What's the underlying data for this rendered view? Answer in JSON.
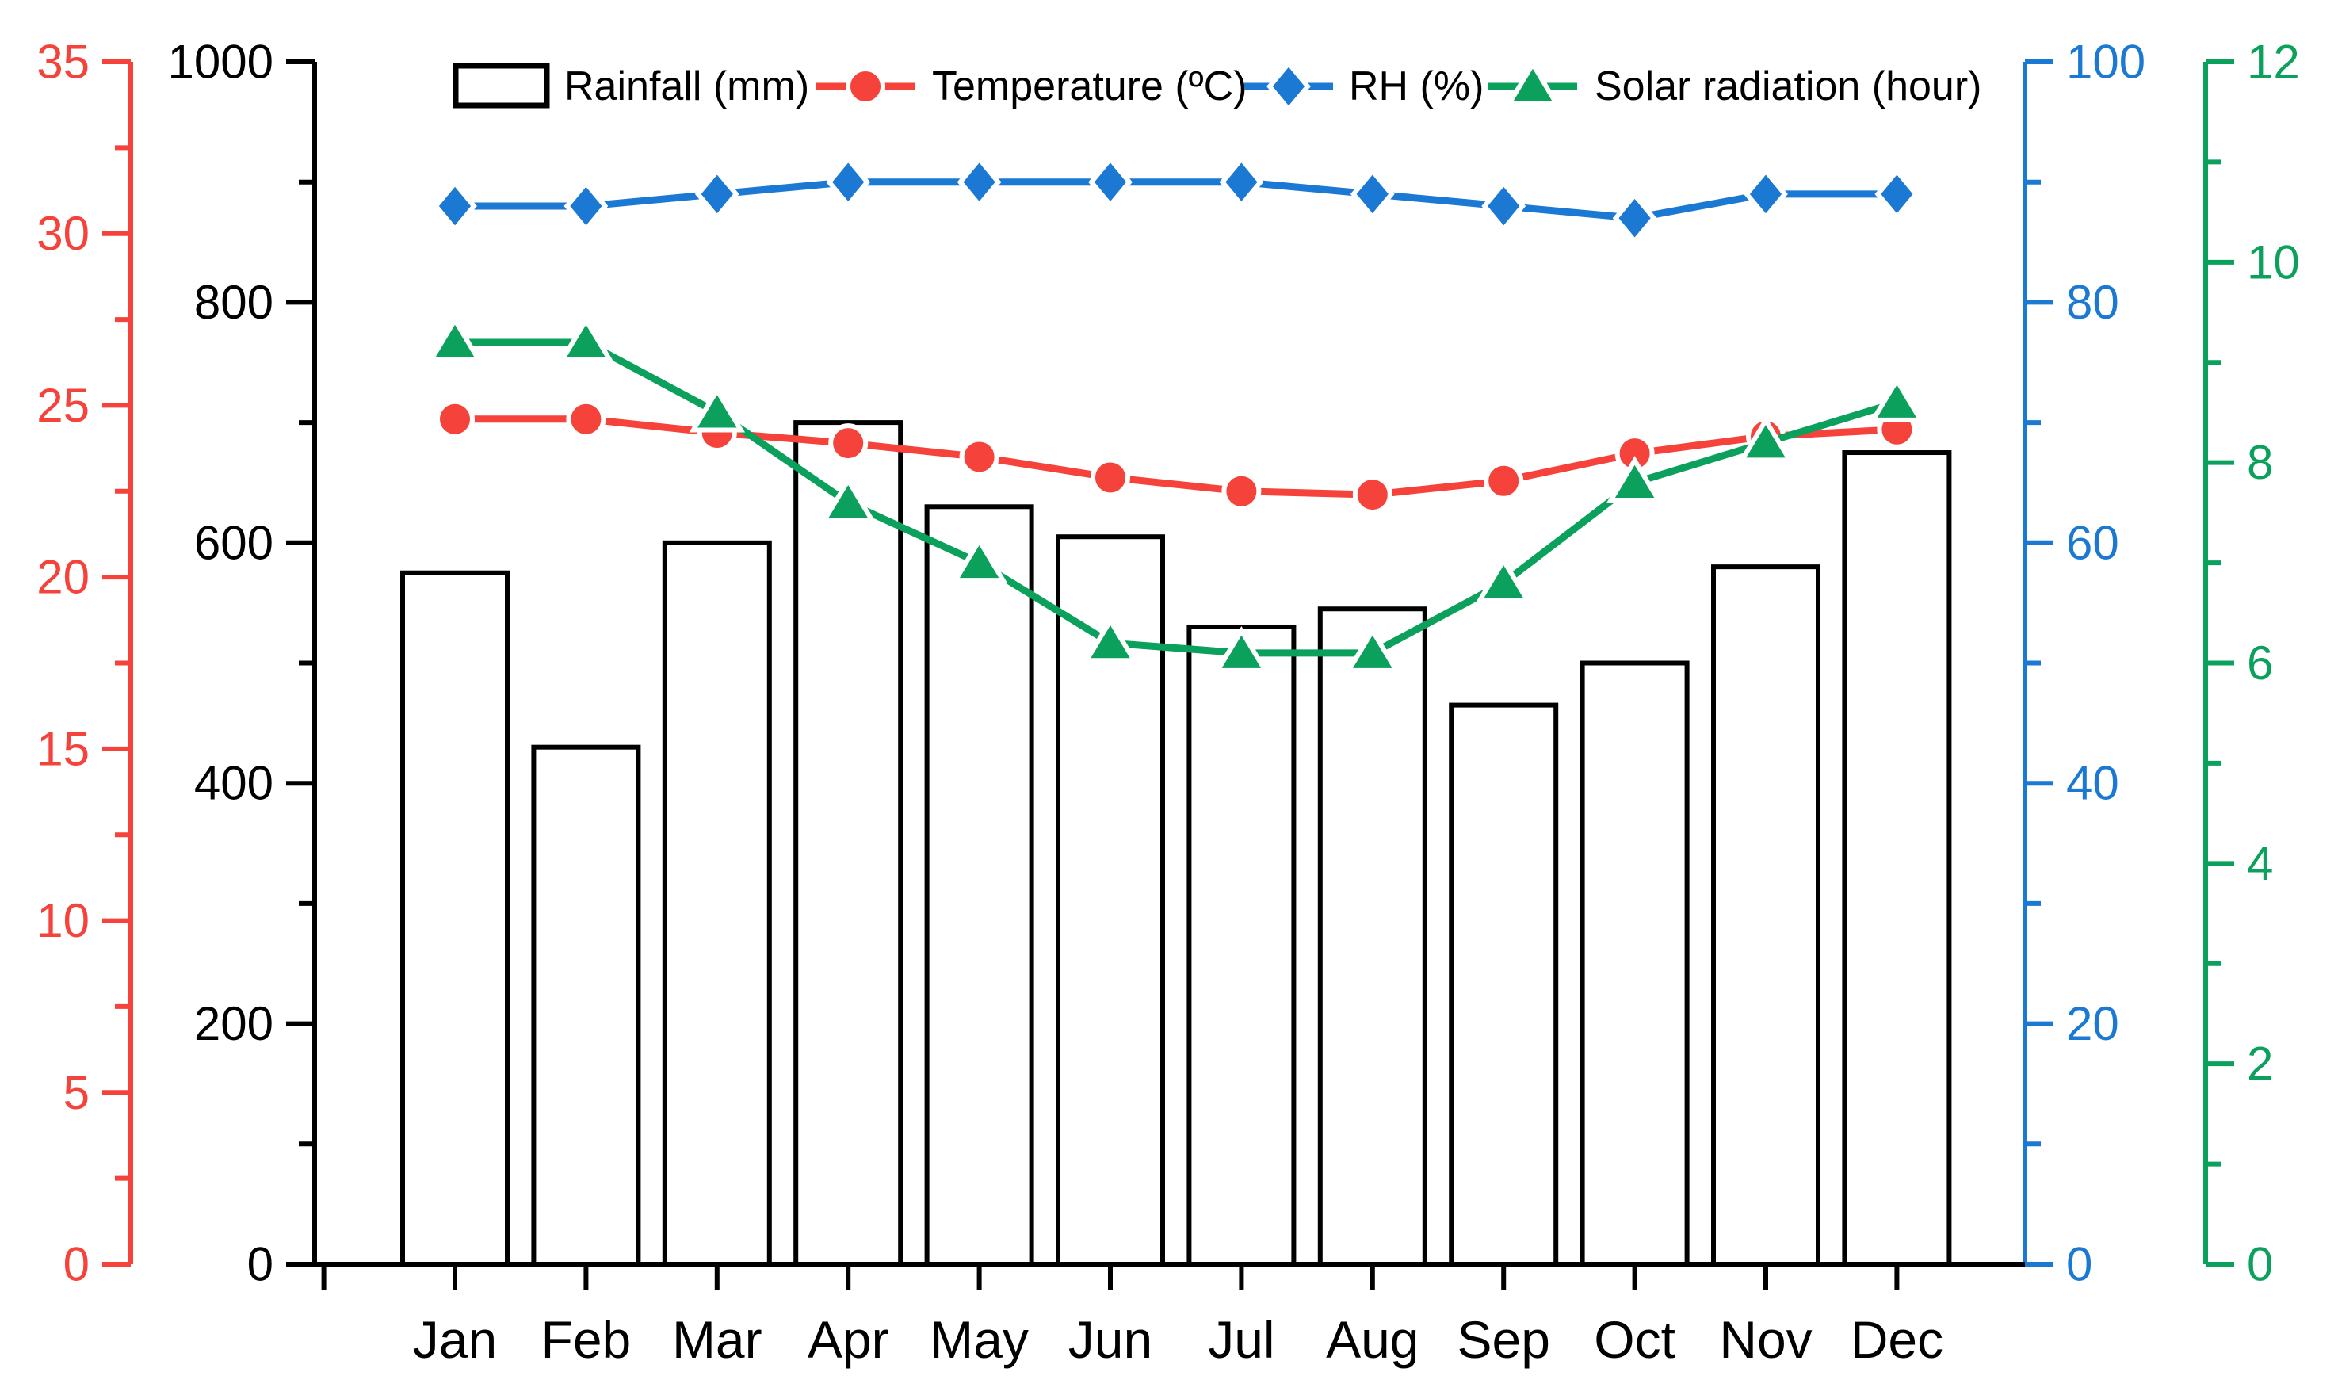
{
  "chart_data": {
    "type": "combo",
    "title": "",
    "categories": [
      "Jan",
      "Feb",
      "Mar",
      "Apr",
      "May",
      "Jun",
      "Jul",
      "Aug",
      "Sep",
      "Oct",
      "Nov",
      "Dec"
    ],
    "series": [
      {
        "name": "Rainfall (mm)",
        "type": "bar",
        "axis": "rainfall",
        "marker": "rect",
        "color": "#000000",
        "fill": "#ffffff",
        "values": [
          575,
          430,
          600,
          700,
          630,
          605,
          530,
          545,
          465,
          500,
          580,
          675
        ]
      },
      {
        "name": "Temperature (ºC)",
        "type": "line",
        "axis": "temperature",
        "marker": "circle",
        "color": "#f5423a",
        "values": [
          24.6,
          24.6,
          24.2,
          23.9,
          23.5,
          22.9,
          22.5,
          22.4,
          22.8,
          23.6,
          24.1,
          24.3
        ]
      },
      {
        "name": "RH (%)",
        "type": "line",
        "axis": "rh",
        "marker": "diamond",
        "color": "#1b79d4",
        "values": [
          88,
          88,
          89,
          90,
          90,
          90,
          90,
          89,
          88,
          87,
          89,
          89
        ]
      },
      {
        "name": "Solar radiation (hour)",
        "type": "line",
        "axis": "solar",
        "marker": "triangle",
        "color": "#0ba15c",
        "values": [
          9.2,
          9.2,
          8.5,
          7.6,
          7.0,
          6.2,
          6.1,
          6.1,
          6.8,
          7.8,
          8.2,
          8.6
        ]
      }
    ],
    "axes": {
      "temperature": {
        "side": "far-left",
        "color": "#f5423a",
        "min": 0,
        "max": 35,
        "major": 5,
        "minor": 2.5,
        "tick_labels": [
          "0",
          "5",
          "10",
          "15",
          "20",
          "25",
          "30",
          "35"
        ]
      },
      "rainfall": {
        "side": "left",
        "color": "#000000",
        "min": 0,
        "max": 1000,
        "major": 200,
        "minor": 100,
        "tick_labels": [
          "0",
          "200",
          "400",
          "600",
          "800",
          "1000"
        ]
      },
      "rh": {
        "side": "right",
        "color": "#1b79d4",
        "min": 0,
        "max": 100,
        "major": 20,
        "minor": 10,
        "tick_labels": [
          "0",
          "20",
          "40",
          "60",
          "80",
          "100"
        ]
      },
      "solar": {
        "side": "far-right",
        "color": "#0ba15c",
        "min": 0,
        "max": 12,
        "major": 2,
        "minor": 1,
        "tick_labels": [
          "0",
          "2",
          "4",
          "6",
          "8",
          "10",
          "12"
        ]
      }
    },
    "legend": {
      "position": "top",
      "items": [
        "Rainfall (mm)",
        "Temperature (ºC)",
        "RH (%)",
        "Solar radiation (hour)"
      ]
    },
    "grid": false,
    "xlabel": "",
    "ylabel": ""
  }
}
